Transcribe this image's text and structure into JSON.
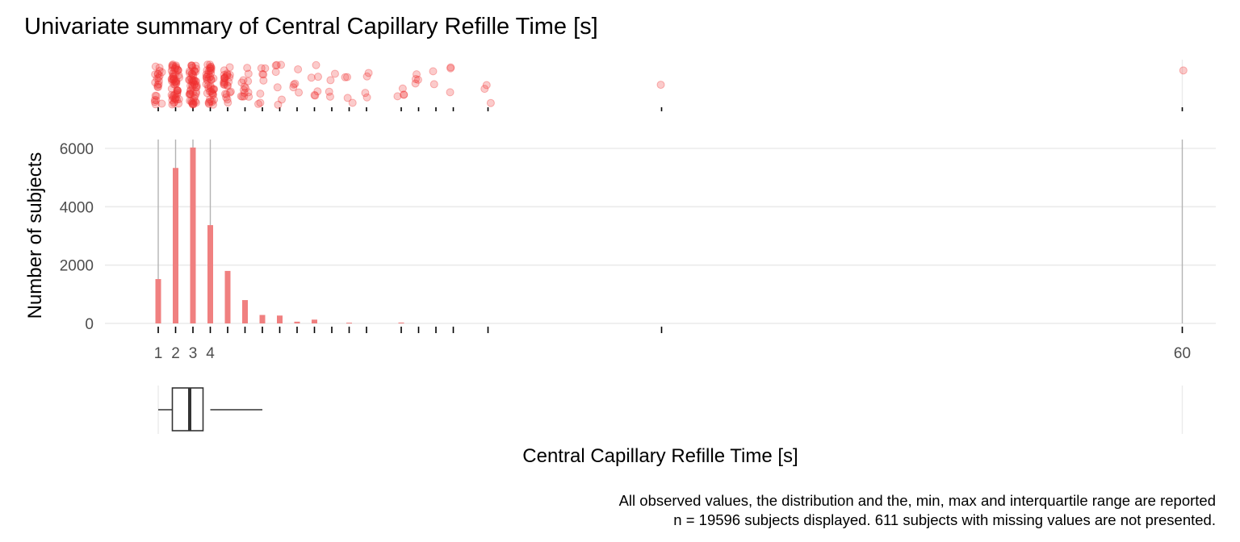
{
  "chart_data": {
    "type": "bar",
    "title": "Univariate summary of Central Capillary Refille Time [s]",
    "xlabel": "Central Capillary Refille Time [s]",
    "ylabel": "Number of subjects",
    "x_tick_labels": [
      "1",
      "2",
      "3",
      "4",
      "60"
    ],
    "y_tick_labels": [
      "0",
      "2000",
      "4000",
      "6000"
    ],
    "ylim": [
      0,
      6500
    ],
    "grid": true,
    "bar_color": "#f08080",
    "point_color": "#f03030",
    "bars": [
      {
        "x": 1,
        "y": 1520
      },
      {
        "x": 2,
        "y": 5330
      },
      {
        "x": 3,
        "y": 6030
      },
      {
        "x": 4,
        "y": 3370
      },
      {
        "x": 5,
        "y": 1800
      },
      {
        "x": 6,
        "y": 800
      },
      {
        "x": 7,
        "y": 290
      },
      {
        "x": 8,
        "y": 270
      },
      {
        "x": 9,
        "y": 60
      },
      {
        "x": 10,
        "y": 130
      },
      {
        "x": 12,
        "y": 25
      },
      {
        "x": 15,
        "y": 30
      }
    ],
    "observed_values": [
      1,
      2,
      3,
      4,
      5,
      6,
      7,
      8,
      9,
      10,
      11,
      12,
      13,
      15,
      16,
      17,
      18,
      20,
      30,
      60
    ],
    "boxplot": {
      "min": 1,
      "q1": 2,
      "median": 3,
      "q3": 4,
      "max": 7
    },
    "caption_lines": [
      "All observed values, the distribution and the, min, max and interquartile range are reported",
      "n = 19596 subjects displayed. 611 subjects with missing values are not presented."
    ]
  }
}
